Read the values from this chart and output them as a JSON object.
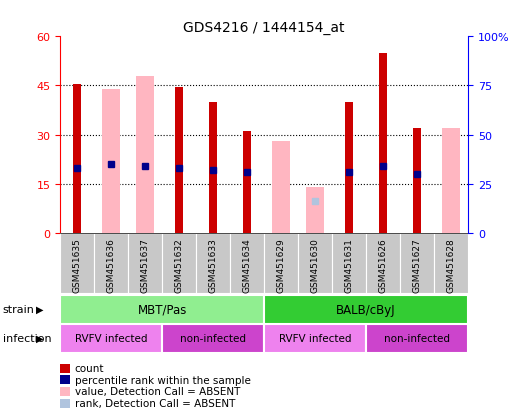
{
  "title": "GDS4216 / 1444154_at",
  "samples": [
    "GSM451635",
    "GSM451636",
    "GSM451637",
    "GSM451632",
    "GSM451633",
    "GSM451634",
    "GSM451629",
    "GSM451630",
    "GSM451631",
    "GSM451626",
    "GSM451627",
    "GSM451628"
  ],
  "count_values": [
    45.5,
    0,
    0,
    44.5,
    40,
    31,
    0,
    0,
    40,
    55,
    32,
    0
  ],
  "percentile_values": [
    33,
    35,
    34,
    33,
    32,
    31,
    0,
    0,
    31,
    34,
    30,
    0
  ],
  "absent_value_values": [
    0,
    44,
    48,
    0,
    0,
    0,
    28,
    14,
    0,
    0,
    0,
    32
  ],
  "absent_rank_values": [
    0,
    0,
    0,
    0,
    0,
    0,
    0,
    16,
    0,
    0,
    0,
    0
  ],
  "ylim_left": [
    0,
    60
  ],
  "ylim_right": [
    0,
    100
  ],
  "yticks_left": [
    0,
    15,
    30,
    45,
    60
  ],
  "yticks_right": [
    0,
    25,
    50,
    75,
    100
  ],
  "ytick_labels_left": [
    "0",
    "15",
    "30",
    "45",
    "60"
  ],
  "ytick_labels_right": [
    "0",
    "25",
    "50",
    "75",
    "100%"
  ],
  "strain_groups": [
    {
      "label": "MBT/Pas",
      "start": 0,
      "end": 6,
      "color": "#90EE90"
    },
    {
      "label": "BALB/cByJ",
      "start": 6,
      "end": 12,
      "color": "#33CC33"
    }
  ],
  "infection_groups": [
    {
      "label": "RVFV infected",
      "start": 0,
      "end": 3,
      "color": "#EE82EE"
    },
    {
      "label": "non-infected",
      "start": 3,
      "end": 6,
      "color": "#CC44CC"
    },
    {
      "label": "RVFV infected",
      "start": 6,
      "end": 9,
      "color": "#EE82EE"
    },
    {
      "label": "non-infected",
      "start": 9,
      "end": 12,
      "color": "#CC44CC"
    }
  ],
  "count_color": "#CC0000",
  "percentile_color": "#00008B",
  "absent_value_color": "#FFB6C1",
  "absent_rank_color": "#B0C4DE",
  "xtick_bg_color": "#C8C8C8",
  "label_strain": "strain",
  "label_infection": "infection",
  "legend_items": [
    {
      "label": "count",
      "color": "#CC0000"
    },
    {
      "label": "percentile rank within the sample",
      "color": "#00008B"
    },
    {
      "label": "value, Detection Call = ABSENT",
      "color": "#FFB6C1"
    },
    {
      "label": "rank, Detection Call = ABSENT",
      "color": "#B0C4DE"
    }
  ]
}
